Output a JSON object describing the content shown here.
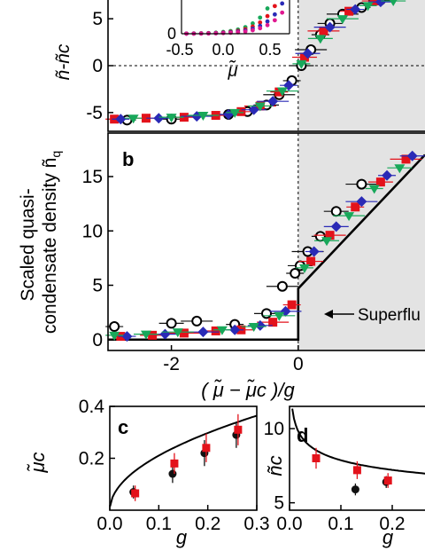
{
  "colors": {
    "black": "#111111",
    "red": "#e3121b",
    "blue": "#2a2ab6",
    "green": "#18a85a",
    "magenta": "#e01890",
    "shade": "#e3e3e3"
  },
  "chart_data": [
    {
      "id": "a",
      "type": "scatter",
      "panel_label": "",
      "ylabel": "ñ-ñc",
      "xlim": [
        -3,
        2
      ],
      "ylim": [
        -7,
        7
      ],
      "yticks": [
        "5",
        "0",
        "-5"
      ],
      "reference_lines": [
        "y = 0",
        "x = 0"
      ],
      "shaded_region": "x > 0",
      "series": [
        {
          "marker": "circle-open",
          "x": [
            -2.7,
            -2.0,
            -1.1,
            -0.8,
            -0.5,
            -0.3,
            -0.1,
            0.05,
            0.2,
            0.35,
            0.5,
            0.7,
            1.0,
            1.3
          ],
          "y": [
            -5.8,
            -5.7,
            -5.2,
            -4.9,
            -4.2,
            -3.1,
            -1.6,
            0.0,
            1.7,
            3.3,
            4.5,
            5.5,
            6.2,
            7.0
          ]
        },
        {
          "marker": "square",
          "x": [
            -2.9,
            -2.4,
            -1.8,
            -1.3,
            -0.9,
            -0.6,
            -0.3,
            0.1,
            0.4,
            0.8,
            1.2
          ],
          "y": [
            -5.7,
            -5.6,
            -5.5,
            -5.3,
            -4.9,
            -4.3,
            -2.8,
            0.9,
            3.7,
            5.8,
            6.9
          ]
        },
        {
          "marker": "diamond",
          "x": [
            -2.8,
            -2.2,
            -1.6,
            -1.1,
            -0.7,
            -0.4,
            -0.15,
            0.15,
            0.5,
            0.9,
            1.3
          ],
          "y": [
            -5.7,
            -5.6,
            -5.4,
            -5.2,
            -4.7,
            -3.8,
            -2.1,
            1.3,
            4.1,
            6.0,
            6.8
          ]
        },
        {
          "marker": "triangle-down",
          "x": [
            -2.6,
            -2.0,
            -1.5,
            -1.0,
            -0.6,
            -0.25,
            0.05,
            0.35,
            0.7,
            1.1,
            1.5
          ],
          "y": [
            -5.6,
            -5.5,
            -5.3,
            -5.0,
            -4.3,
            -2.7,
            0.2,
            2.9,
            5.0,
            6.4,
            6.9
          ]
        }
      ],
      "inset": {
        "xlabel": "μ̃",
        "xlim": [
          -0.5,
          0.6
        ],
        "xticks": [
          "-0.5",
          "0.0",
          "0.5"
        ],
        "ytick": "0",
        "series_colors": [
          "green",
          "red",
          "blue",
          "magenta"
        ]
      }
    },
    {
      "id": "b",
      "type": "scatter",
      "panel_label": "b",
      "ylabel": "Scaled quasi- condensate density ñq",
      "xlabel": "( μ̃ − μ̃c )/g",
      "xlim": [
        -3,
        2
      ],
      "ylim": [
        -1,
        19
      ],
      "xticks": [
        "-2",
        "0"
      ],
      "yticks": [
        "0",
        "5",
        "10",
        "15"
      ],
      "annotation": "Superflu",
      "shaded_region": "x > 0",
      "model_curve": {
        "x": [
          -3,
          0,
          0,
          2
        ],
        "y": [
          0,
          0,
          4.7,
          17
        ]
      },
      "series": [
        {
          "marker": "circle-open",
          "x": [
            -2.9,
            -2.0,
            -1.6,
            -1.0,
            -0.5,
            -0.25,
            -0.05,
            0.03,
            0.15,
            0.35,
            0.6,
            1.0
          ],
          "y": [
            1.2,
            1.5,
            1.7,
            1.4,
            2.4,
            4.9,
            6.1,
            6.8,
            8.1,
            9.5,
            11.8,
            14.3
          ]
        },
        {
          "marker": "square",
          "x": [
            -2.8,
            -2.3,
            -1.8,
            -1.3,
            -0.9,
            -0.4,
            -0.1,
            0.2,
            0.5,
            0.9,
            1.3,
            1.7
          ],
          "y": [
            0.3,
            0.4,
            0.6,
            0.8,
            0.9,
            1.6,
            3.2,
            7.2,
            9.6,
            12.2,
            14.5,
            16.6
          ]
        },
        {
          "marker": "diamond",
          "x": [
            -2.7,
            -2.1,
            -1.5,
            -1.0,
            -0.6,
            -0.2,
            0.25,
            0.6,
            1.0,
            1.4,
            1.8
          ],
          "y": [
            0.3,
            0.5,
            0.7,
            0.9,
            1.3,
            2.6,
            8.1,
            10.4,
            12.7,
            15.1,
            16.9
          ]
        },
        {
          "marker": "triangle-down",
          "x": [
            -2.9,
            -2.4,
            -1.9,
            -1.2,
            -0.7,
            -0.3,
            0.1,
            0.45,
            0.8,
            1.2,
            1.6
          ],
          "y": [
            0.4,
            0.5,
            0.7,
            0.9,
            1.2,
            2.2,
            6.6,
            9.1,
            11.4,
            13.9,
            15.8
          ]
        }
      ]
    },
    {
      "id": "c",
      "type": "scatter",
      "panel_label": "c",
      "ylabel": "μ̃c",
      "xlabel": "g",
      "xlim": [
        0,
        0.3
      ],
      "ylim": [
        0,
        0.4
      ],
      "xticks": [
        "0.0",
        "0.1",
        "0.2",
        "0.3"
      ],
      "yticks": [
        "0.2",
        "0.4"
      ],
      "model_curve": {
        "type": "power",
        "coef": 0.665,
        "exp": 0.5
      },
      "series": [
        {
          "marker": "circle",
          "color": "black",
          "x": [
            0.05,
            0.13,
            0.195,
            0.26
          ],
          "y": [
            0.07,
            0.14,
            0.22,
            0.29
          ],
          "err": [
            0.025,
            0.035,
            0.05,
            0.05
          ]
        },
        {
          "marker": "square",
          "color": "red",
          "x": [
            0.05,
            0.13,
            0.195,
            0.26
          ],
          "y": [
            0.065,
            0.18,
            0.24,
            0.31
          ],
          "err": [
            0.03,
            0.04,
            0.055,
            0.06
          ]
        }
      ]
    },
    {
      "id": "d",
      "type": "scatter",
      "panel_label": "d",
      "ylabel": "ñc",
      "xlabel": "g",
      "xlim": [
        0,
        0.25
      ],
      "ylim": [
        4.5,
        11.5
      ],
      "xticks": [
        "0.0",
        "0.1",
        "0.2"
      ],
      "yticks": [
        "5",
        "10"
      ],
      "model_curve": {
        "type": "power",
        "coef": 5.9,
        "exp": -0.125
      },
      "series": [
        {
          "marker": "circle",
          "color": "black",
          "x": [
            0.13,
            0.19
          ],
          "y": [
            5.9,
            6.4
          ],
          "err": [
            0.4,
            0.4
          ]
        },
        {
          "marker": "square",
          "color": "red",
          "x": [
            0.05,
            0.13,
            0.19
          ],
          "y": [
            8.0,
            7.2,
            6.5
          ],
          "err": [
            0.7,
            0.6,
            0.5
          ]
        }
      ]
    }
  ]
}
